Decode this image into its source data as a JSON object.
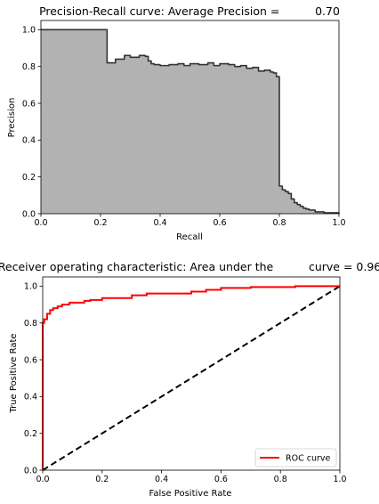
{
  "chart_data": [
    {
      "type": "area",
      "title": "Precision-Recall curve: Average Precision =          0.70",
      "xlabel": "Recall",
      "ylabel": "Precision",
      "xlim": [
        0.0,
        1.0
      ],
      "ylim": [
        0.0,
        1.05
      ],
      "xticks": [
        "0.0",
        "0.2",
        "0.4",
        "0.6",
        "0.8",
        "1.0"
      ],
      "yticks": [
        "0.0",
        "0.2",
        "0.4",
        "0.6",
        "0.8",
        "1.0"
      ],
      "fill_color": "#b2b2b2",
      "line_color": "#333333",
      "step": true,
      "x": [
        0.0,
        0.222,
        0.222,
        0.25,
        0.28,
        0.3,
        0.33,
        0.35,
        0.36,
        0.37,
        0.38,
        0.4,
        0.43,
        0.46,
        0.48,
        0.5,
        0.53,
        0.56,
        0.58,
        0.6,
        0.63,
        0.65,
        0.67,
        0.69,
        0.71,
        0.73,
        0.75,
        0.77,
        0.78,
        0.79,
        0.8,
        0.8,
        0.81,
        0.82,
        0.83,
        0.84,
        0.85,
        0.86,
        0.87,
        0.88,
        0.89,
        0.9,
        0.92,
        0.95,
        1.0
      ],
      "y": [
        1.0,
        1.0,
        0.82,
        0.84,
        0.86,
        0.85,
        0.86,
        0.855,
        0.83,
        0.815,
        0.81,
        0.805,
        0.81,
        0.815,
        0.805,
        0.815,
        0.81,
        0.82,
        0.805,
        0.815,
        0.81,
        0.8,
        0.805,
        0.79,
        0.795,
        0.775,
        0.78,
        0.77,
        0.765,
        0.745,
        0.74,
        0.15,
        0.13,
        0.12,
        0.11,
        0.08,
        0.06,
        0.05,
        0.04,
        0.03,
        0.025,
        0.02,
        0.01,
        0.005,
        0.0
      ]
    },
    {
      "type": "line",
      "title": "Receiver operating characteristic: Area under the          curve = 0.96",
      "xlabel": "False Positive Rate",
      "ylabel": "True Positive Rate",
      "xlim": [
        0.0,
        1.0
      ],
      "ylim": [
        0.0,
        1.05
      ],
      "xticks": [
        "0.0",
        "0.2",
        "0.4",
        "0.6",
        "0.8",
        "1.0"
      ],
      "yticks": [
        "0.0",
        "0.2",
        "0.4",
        "0.6",
        "0.8",
        "1.0"
      ],
      "legend_placement": "lower-right",
      "series": [
        {
          "name": "ROC curve",
          "color": "#ff0000",
          "style": "solid",
          "x": [
            0.0,
            0.0,
            0.005,
            0.005,
            0.015,
            0.015,
            0.025,
            0.025,
            0.035,
            0.035,
            0.05,
            0.05,
            0.065,
            0.065,
            0.09,
            0.09,
            0.14,
            0.14,
            0.16,
            0.16,
            0.2,
            0.2,
            0.3,
            0.3,
            0.35,
            0.35,
            0.5,
            0.5,
            0.55,
            0.55,
            0.6,
            0.6,
            0.7,
            0.7,
            0.85,
            0.85,
            1.0
          ],
          "y": [
            0.0,
            0.8,
            0.8,
            0.82,
            0.82,
            0.85,
            0.85,
            0.87,
            0.87,
            0.88,
            0.88,
            0.89,
            0.89,
            0.9,
            0.9,
            0.91,
            0.91,
            0.92,
            0.92,
            0.925,
            0.925,
            0.935,
            0.935,
            0.95,
            0.95,
            0.96,
            0.96,
            0.97,
            0.97,
            0.98,
            0.98,
            0.99,
            0.99,
            0.995,
            0.995,
            1.0,
            1.0
          ]
        },
        {
          "name": "",
          "color": "#000000",
          "style": "dashed",
          "x": [
            0.0,
            1.0
          ],
          "y": [
            0.0,
            1.0
          ]
        }
      ]
    }
  ]
}
